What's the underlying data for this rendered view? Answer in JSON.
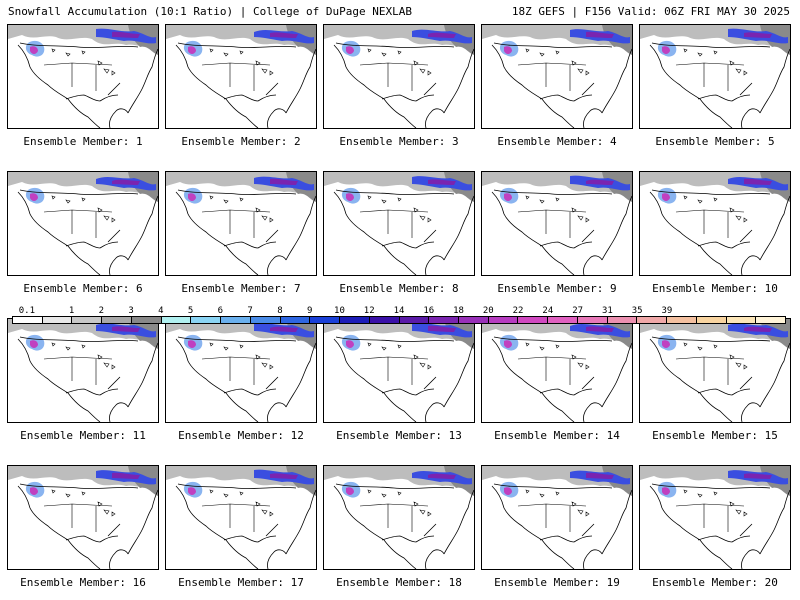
{
  "header": {
    "left": "Snowfall Accumulation (10:1 Ratio) | College of DuPage NEXLAB",
    "right": "18Z GEFS | F156 Valid: 06Z FRI MAY 30 2025"
  },
  "colorbar": {
    "labels": [
      "0.1",
      "1",
      "2",
      "3",
      "4",
      "5",
      "6",
      "7",
      "8",
      "9",
      "10",
      "12",
      "14",
      "16",
      "18",
      "20",
      "22",
      "24",
      "27",
      "31",
      "35",
      "39"
    ],
    "colors": [
      "#ffffff",
      "#e8e8e8",
      "#c8c8c8",
      "#a8a8a8",
      "#888888",
      "#b0f0f0",
      "#8ad4f4",
      "#6ab0ee",
      "#4a8ce8",
      "#2e66e2",
      "#1a40d8",
      "#1c1cb8",
      "#3a10a8",
      "#5a1aa8",
      "#7a24b0",
      "#9830b8",
      "#b63cc0",
      "#d048c0",
      "#e060c0",
      "#e878b8",
      "#ec90b0",
      "#f0a8a8",
      "#f4c0a0",
      "#f8d4a0",
      "#fce6b8",
      "#fff4d8"
    ]
  },
  "panels": [
    {
      "label": "Ensemble Member: 1"
    },
    {
      "label": "Ensemble Member: 2"
    },
    {
      "label": "Ensemble Member: 3"
    },
    {
      "label": "Ensemble Member: 4"
    },
    {
      "label": "Ensemble Member: 5"
    },
    {
      "label": "Ensemble Member: 6"
    },
    {
      "label": "Ensemble Member: 7"
    },
    {
      "label": "Ensemble Member: 8"
    },
    {
      "label": "Ensemble Member: 9"
    },
    {
      "label": "Ensemble Member: 10"
    },
    {
      "label": "Ensemble Member: 11"
    },
    {
      "label": "Ensemble Member: 12"
    },
    {
      "label": "Ensemble Member: 13"
    },
    {
      "label": "Ensemble Member: 14"
    },
    {
      "label": "Ensemble Member: 15"
    },
    {
      "label": "Ensemble Member: 16"
    },
    {
      "label": "Ensemble Member: 17"
    },
    {
      "label": "Ensemble Member: 18"
    },
    {
      "label": "Ensemble Member: 19"
    },
    {
      "label": "Ensemble Member: 20"
    }
  ]
}
